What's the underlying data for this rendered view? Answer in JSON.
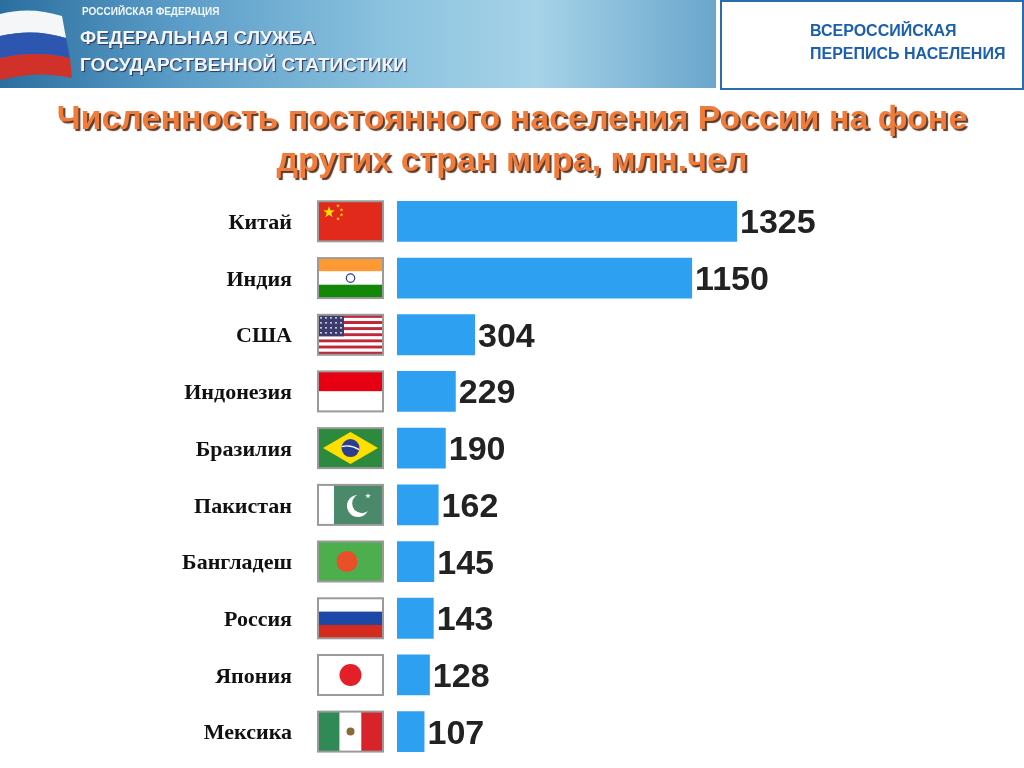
{
  "chart_data": {
    "type": "bar",
    "orientation": "horizontal",
    "title": "Численность постоянного населения России на фоне других стран мира, млн.чел",
    "categories": [
      "Китай",
      "Индия",
      "США",
      "Индонезия",
      "Бразилия",
      "Пакистан",
      "Бангладеш",
      "Россия",
      "Япония",
      "Мексика"
    ],
    "values": [
      1325,
      1150,
      304,
      229,
      190,
      162,
      145,
      143,
      128,
      107
    ],
    "color": "#2ea0f2",
    "data_labels": true,
    "tick_labels": "y",
    "annotations": [
      "РОССИЙСКАЯ ФЕДЕРАЦИЯ",
      "ФЕДЕРАЛЬНАЯ СЛУЖБА ГОСУДАРСТВЕННОЙ СТАТИСТИКИ",
      "ВСЕРОССИЙСКАЯ ПЕРЕПИСЬ НАСЕЛЕНИЯ"
    ]
  }
}
